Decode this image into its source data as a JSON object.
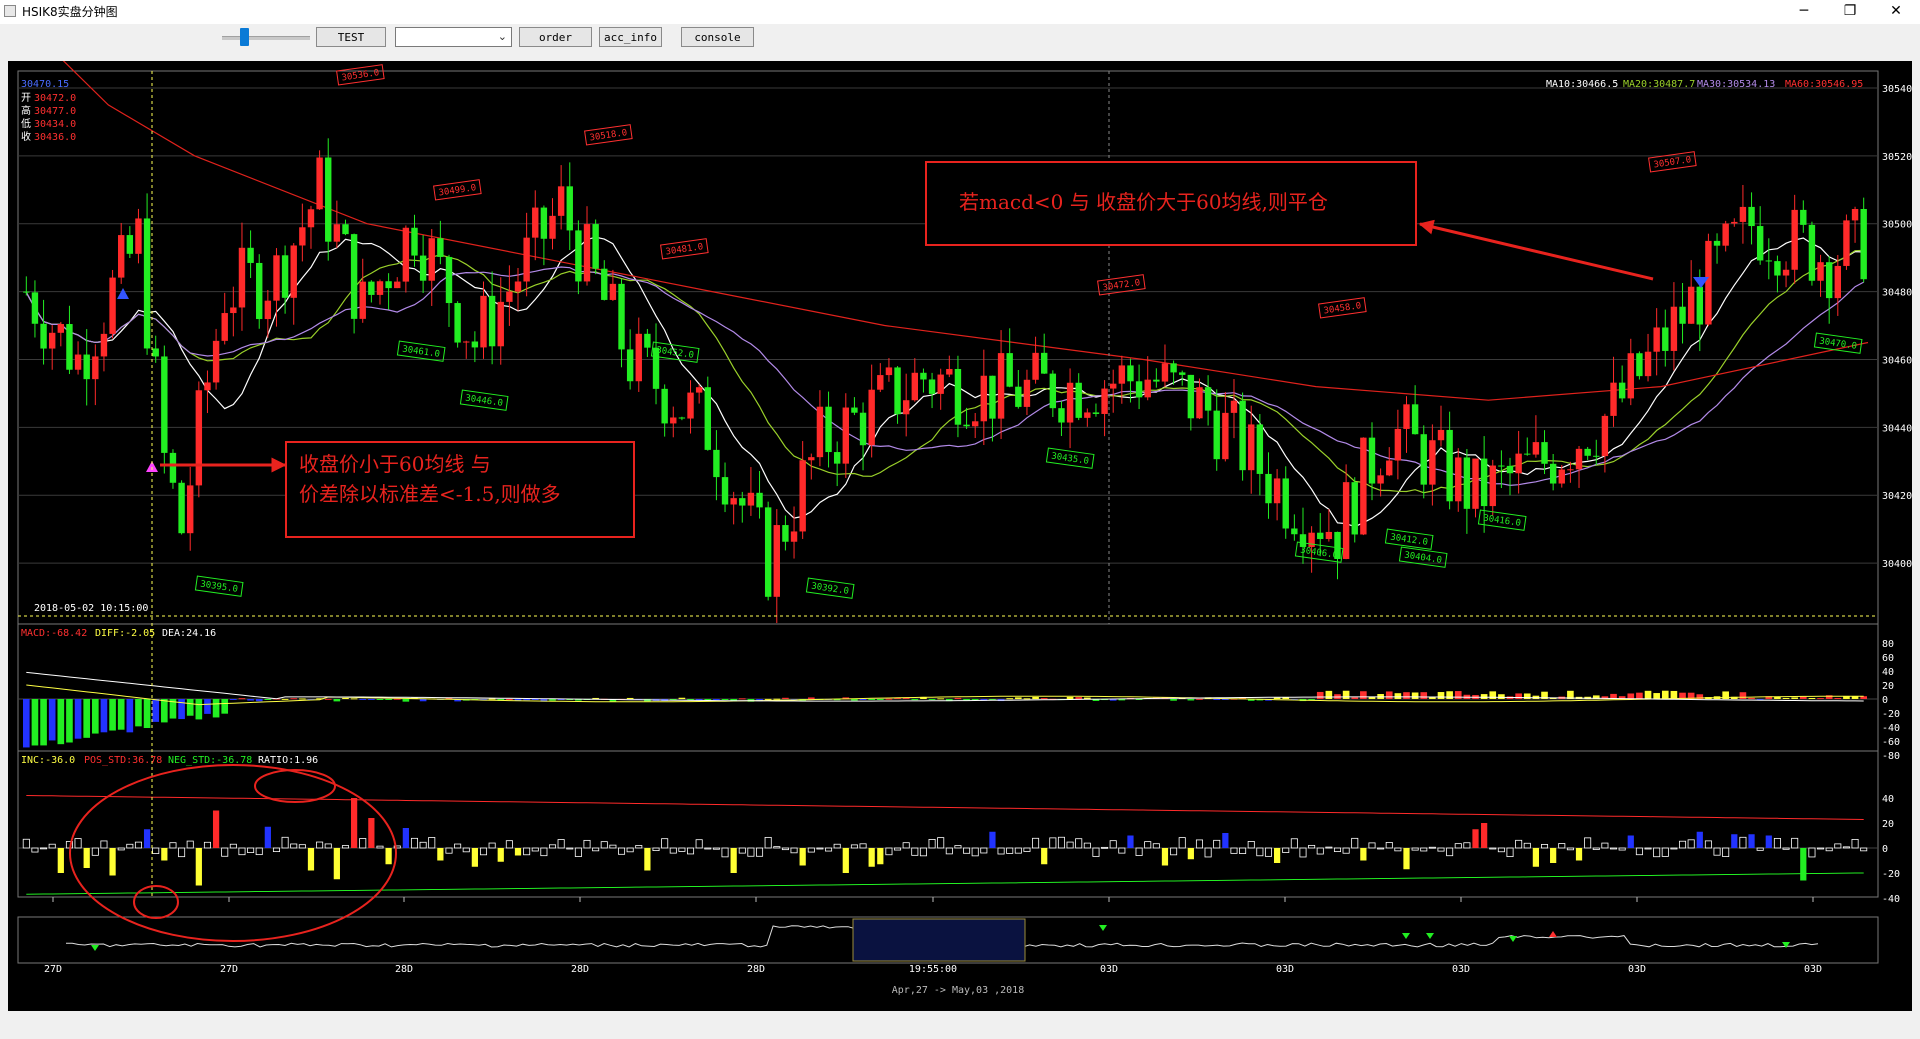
{
  "window": {
    "title": "HSIK8实盘分钟图",
    "min_symbol": "─",
    "max_symbol": "❐",
    "close_symbol": "✕"
  },
  "toolbar": {
    "test_label": "TEST",
    "combo_value": "",
    "order_label": "order",
    "acc_info_label": "acc_info",
    "console_label": "console"
  },
  "ohlc_panel": {
    "open_label": "开",
    "open_value": "30472.0",
    "high_label": "高",
    "high_value": "30477.0",
    "low_label": "低",
    "low_value": "30434.0",
    "close_label": "收",
    "close_value": "30436.0",
    "top_value": "30470.15"
  },
  "ma_legend": {
    "ma10": "MA10:30466.5",
    "ma20": "MA20:30487.7",
    "ma30": "MA30:30534.13",
    "ma60": "MA60:30546.95"
  },
  "cursor_time": "2018-05-02 10:15:00",
  "price_axis": [
    "30540",
    "30520",
    "30500",
    "30480",
    "30460",
    "30440",
    "30420",
    "30400"
  ],
  "macd_legend": {
    "macd": "MACD:-68.42",
    "diff": "DIFF:-2.05",
    "dea": "DEA:24.16"
  },
  "macd_axis": [
    "80",
    "60",
    "40",
    "20",
    "0",
    "-20",
    "-40",
    "-60",
    "-80"
  ],
  "inc_legend": {
    "inc": "INC:-36.0",
    "pos_std": "POS_STD:36.78",
    "neg_std": "NEG_STD:-36.78",
    "ratio": "RATIO:1.96"
  },
  "inc_axis": [
    "40",
    "20",
    "0",
    "-20",
    "-40"
  ],
  "time_axis": [
    "27D",
    "27D",
    "28D",
    "28D",
    "28D",
    "19:55:00",
    "03D",
    "03D",
    "03D",
    "03D",
    "03D"
  ],
  "date_range": "Apr,27 -> May,03 ,2018",
  "red_price_labels": [
    "30536.0",
    "30518.0",
    "30499.0",
    "30481.0",
    "30472.0",
    "30458.0",
    "30507.0"
  ],
  "green_price_labels": [
    "30461.0",
    "30446.0",
    "30395.0",
    "30435.0",
    "30392.0",
    "30406.0",
    "30412.0",
    "30416.0",
    "30470.0",
    "30452.0",
    "30404.0"
  ],
  "annotations": {
    "buy": [
      "收盘价小于60均线  与",
      "价差除以标准差<-1.5,则做多"
    ],
    "sell": "若macd<0 与 收盘价大于60均线,则平仓"
  },
  "colors": {
    "up": "#ff2a2a",
    "down": "#22ee22",
    "ma10": "#ffffff",
    "ma20": "#9ad02a",
    "ma30": "#b28ae8",
    "ma60": "#e0221c",
    "annotation": "#e8231e",
    "axis_text": "#ffffff",
    "background": "#000000"
  }
}
